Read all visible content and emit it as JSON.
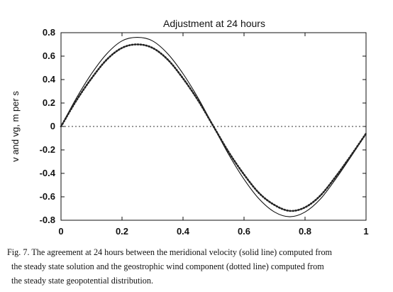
{
  "chart_data": {
    "type": "line",
    "title": "Adjustment at 24 hours",
    "xlabel": "",
    "ylabel": "v and vg, m per s",
    "xlim": [
      0,
      1
    ],
    "ylim": [
      -0.8,
      0.8
    ],
    "xticks": [
      "0",
      "0.2",
      "0.4",
      "0.6",
      "0.8",
      "1"
    ],
    "yticks": [
      "0.8",
      "0.6",
      "0.4",
      "0.2",
      "0",
      "-0.2",
      "-0.4",
      "-0.6",
      "-0.8"
    ],
    "grid": false,
    "legend": "none",
    "series": [
      {
        "style": "solid",
        "x": [
          0,
          0.05,
          0.1,
          0.15,
          0.2,
          0.25,
          0.3,
          0.35,
          0.4,
          0.45,
          0.5,
          0.55,
          0.6,
          0.65,
          0.7,
          0.75,
          0.8,
          0.85,
          0.9,
          0.95,
          1.0
        ],
        "y": [
          0,
          0.24,
          0.45,
          0.62,
          0.73,
          0.76,
          0.73,
          0.62,
          0.45,
          0.24,
          0,
          -0.24,
          -0.45,
          -0.62,
          -0.73,
          -0.77,
          -0.73,
          -0.62,
          -0.45,
          -0.26,
          -0.06
        ]
      },
      {
        "style": "dotted",
        "x": [
          0,
          0.05,
          0.1,
          0.15,
          0.2,
          0.25,
          0.3,
          0.35,
          0.4,
          0.45,
          0.5,
          0.55,
          0.6,
          0.65,
          0.7,
          0.75,
          0.8,
          0.85,
          0.9,
          0.95,
          1.0
        ],
        "y": [
          0,
          0.22,
          0.41,
          0.57,
          0.67,
          0.7,
          0.67,
          0.57,
          0.41,
          0.22,
          0,
          -0.22,
          -0.41,
          -0.57,
          -0.67,
          -0.72,
          -0.69,
          -0.59,
          -0.43,
          -0.25,
          -0.06
        ]
      },
      {
        "style": "dotted-reference",
        "x": [
          0,
          1
        ],
        "y": [
          0,
          0
        ]
      }
    ]
  },
  "caption": {
    "line1": "Fig. 7. The agreement at 24 hours between the meridional velocity (solid line) computed from",
    "line2": "the steady state solution and the geostrophic wind component (dotted line) computed from",
    "line3": "the steady state geopotential distribution."
  },
  "colors": {
    "ink": "#111111",
    "background": "#ffffff"
  }
}
